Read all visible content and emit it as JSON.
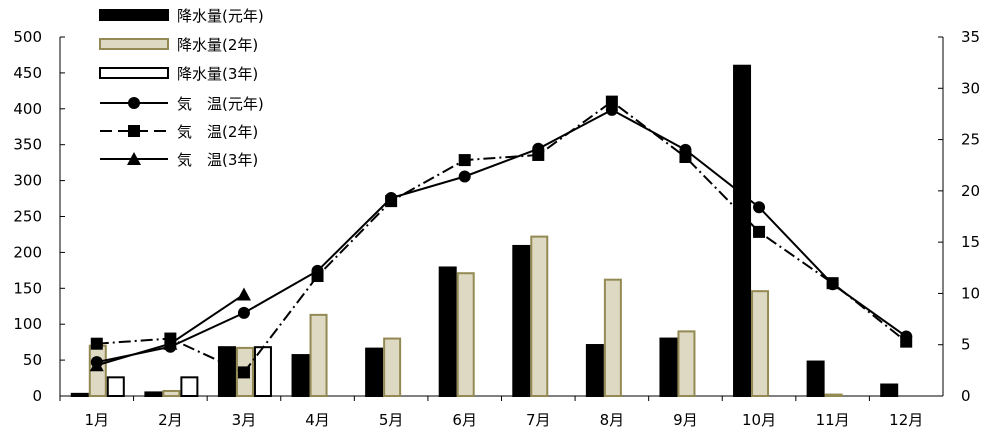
{
  "chart_data": {
    "type": "bar+line",
    "categories": [
      "1月",
      "2月",
      "3月",
      "4月",
      "5月",
      "6月",
      "7月",
      "8月",
      "9月",
      "10月",
      "11月",
      "12月"
    ],
    "left_axis": {
      "ylim": [
        0,
        500
      ],
      "ticks": [
        0,
        50,
        100,
        150,
        200,
        250,
        300,
        350,
        400,
        450,
        500
      ]
    },
    "right_axis": {
      "ylim": [
        0,
        35
      ],
      "ticks": [
        0,
        5,
        10,
        15,
        20,
        25,
        30,
        35
      ]
    },
    "bar_series": [
      {
        "name": "降水量(元年)",
        "fill": "#000000",
        "stroke": "#000000",
        "values": [
          3,
          5,
          68,
          57,
          66,
          179,
          209,
          71,
          80,
          460,
          48,
          16
        ]
      },
      {
        "name": "降水量(2年)",
        "fill": "#ddd9c3",
        "stroke": "#938953",
        "values": [
          70,
          7,
          67,
          113,
          80,
          171,
          222,
          162,
          90,
          146,
          2,
          null
        ]
      },
      {
        "name": "降水量(3年)",
        "fill": "#ffffff",
        "stroke": "#000000",
        "values": [
          26,
          26,
          68,
          null,
          null,
          null,
          null,
          null,
          null,
          null,
          null,
          null
        ]
      }
    ],
    "line_series": [
      {
        "name": "気　温(元年)",
        "marker": "circle",
        "dash": "solid",
        "values": [
          3.3,
          4.8,
          8.1,
          12.2,
          19.3,
          21.4,
          24.1,
          27.9,
          24.0,
          18.4,
          10.9,
          5.8
        ]
      },
      {
        "name": "気　温(2年)",
        "marker": "square",
        "dash": "dashdot",
        "values": [
          5.1,
          5.6,
          2.3,
          11.7,
          19.0,
          23.0,
          23.5,
          28.7,
          23.3,
          16.0,
          11.0,
          5.3
        ]
      },
      {
        "name": "気　温(3年)",
        "marker": "triangle",
        "dash": "solid",
        "values": [
          3.0,
          5.1,
          9.9,
          null,
          null,
          null,
          null,
          null,
          null,
          null,
          null,
          null
        ]
      }
    ],
    "legend": {
      "position": "top-left",
      "entries": [
        "降水量(元年)",
        "降水量(2年)",
        "降水量(3年)",
        "気　温(元年)",
        "気　温(2年)",
        "気　温(3年)"
      ]
    },
    "grid": false
  }
}
